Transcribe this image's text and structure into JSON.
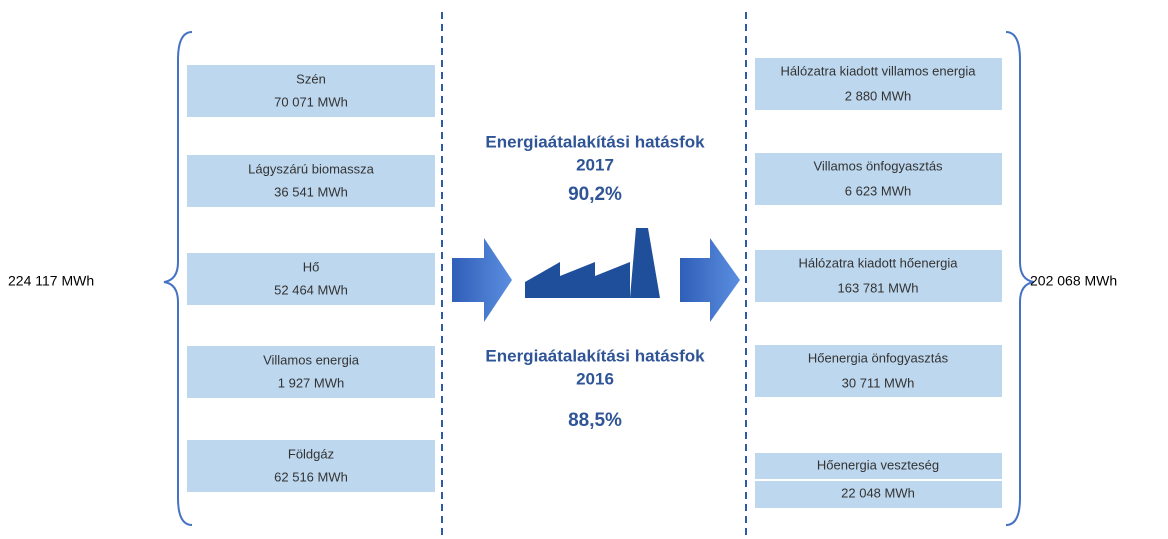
{
  "left": {
    "total": "224 117 MWh",
    "items": [
      {
        "label": "Szén",
        "value": "70 071 MWh"
      },
      {
        "label": "Lágyszárú biomassza",
        "value": "36 541 MWh"
      },
      {
        "label": "Hő",
        "value": "52 464 MWh"
      },
      {
        "label": "Villamos energia",
        "value": "1 927 MWh"
      },
      {
        "label": "Földgáz",
        "value": "62 516 MWh"
      }
    ]
  },
  "center": {
    "efficiency_2017": {
      "label": "Energiaátalakítási hatásfok",
      "year": "2017",
      "value": "90,2%"
    },
    "efficiency_2016": {
      "label": "Energiaátalakítási hatásfok",
      "year": "2016",
      "value": "88,5%"
    }
  },
  "right": {
    "total": "202 068 MWh",
    "items": [
      {
        "label": "Hálózatra kiadott villamos energia",
        "value": "2 880 MWh"
      },
      {
        "label": "Villamos önfogyasztás",
        "value": "6 623 MWh"
      },
      {
        "label": "Hálózatra kiadott hőenergia",
        "value": "163 781 MWh"
      },
      {
        "label": "Hőenergia önfogyasztás",
        "value": "30 711 MWh"
      },
      {
        "label": "Hőenergia veszteség",
        "value": "22 048 MWh"
      }
    ]
  }
}
